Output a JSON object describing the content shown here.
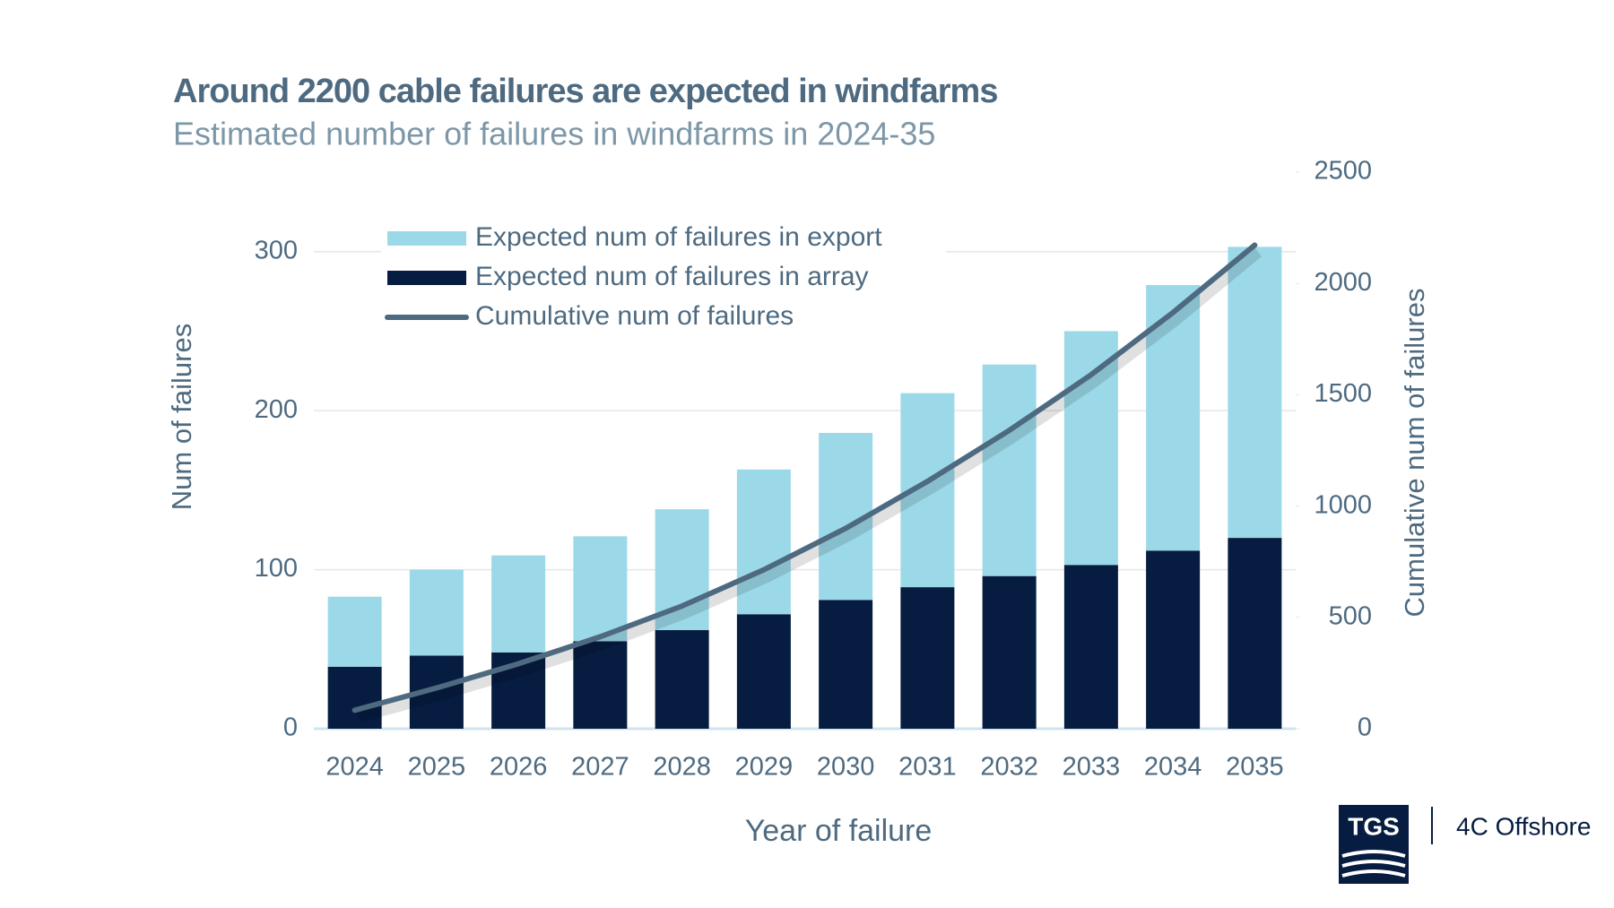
{
  "chart_data": {
    "type": "bar",
    "title": "Around 2200 cable failures are expected in windfarms",
    "subtitle": "Estimated number of failures in windfarms in 2024-35",
    "x_label": "Year of failure",
    "y_label": "Num of failures",
    "y2_label": "Cumulative num of failures",
    "categories": [
      "2024",
      "2025",
      "2026",
      "2027",
      "2028",
      "2029",
      "2030",
      "2031",
      "2032",
      "2033",
      "2034",
      "2035"
    ],
    "series": [
      {
        "name": "Expected num of failures in export",
        "type": "bar",
        "color": "#9bd9e8",
        "values": [
          44,
          54,
          61,
          66,
          76,
          91,
          105,
          122,
          133,
          147,
          167,
          183
        ]
      },
      {
        "name": "Expected num of failures in array",
        "type": "bar",
        "color": "#061c40",
        "values": [
          39,
          46,
          48,
          55,
          62,
          72,
          81,
          89,
          96,
          103,
          112,
          120
        ]
      },
      {
        "name": "Cumulative num of failures",
        "type": "line",
        "axis": "y2",
        "color": "#4e6a80",
        "values": [
          83,
          183,
          292,
          413,
          551,
          714,
          900,
          1111,
          1340,
          1590,
          1869,
          2172
        ]
      }
    ],
    "ylim": [
      0,
      350
    ],
    "yticks": [
      0,
      100,
      200,
      300
    ],
    "y2lim": [
      0,
      2500
    ],
    "y2ticks": [
      0,
      500,
      1000,
      1500,
      2000,
      2500
    ],
    "grid": true,
    "stacked": true,
    "legend": "top-left"
  },
  "logo": {
    "mark": "TGS",
    "name": "4C Offshore"
  }
}
